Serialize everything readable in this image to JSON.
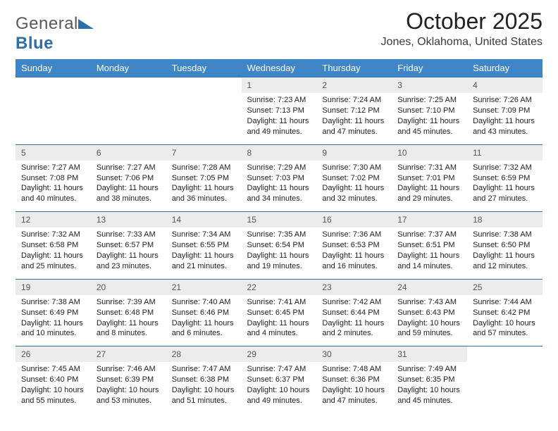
{
  "brand": {
    "part1": "General",
    "part2": "Blue"
  },
  "title": "October 2025",
  "subtitle": "Jones, Oklahoma, United States",
  "colors": {
    "header_bg": "#3f86c6",
    "header_text": "#ffffff",
    "daynum_bg": "#ececec",
    "rule": "#2f6fa8",
    "logo_gray": "#5a5a5a",
    "logo_blue": "#2f6fa8"
  },
  "fonts": {
    "title_pt": 32,
    "subtitle_pt": 16,
    "dayheader_pt": 13,
    "daynum_pt": 12,
    "body_pt": 11
  },
  "weekdays": [
    "Sunday",
    "Monday",
    "Tuesday",
    "Wednesday",
    "Thursday",
    "Friday",
    "Saturday"
  ],
  "weeks": [
    [
      null,
      null,
      null,
      {
        "n": "1",
        "sr": "Sunrise: 7:23 AM",
        "ss": "Sunset: 7:13 PM",
        "dl": "Daylight: 11 hours and 49 minutes."
      },
      {
        "n": "2",
        "sr": "Sunrise: 7:24 AM",
        "ss": "Sunset: 7:12 PM",
        "dl": "Daylight: 11 hours and 47 minutes."
      },
      {
        "n": "3",
        "sr": "Sunrise: 7:25 AM",
        "ss": "Sunset: 7:10 PM",
        "dl": "Daylight: 11 hours and 45 minutes."
      },
      {
        "n": "4",
        "sr": "Sunrise: 7:26 AM",
        "ss": "Sunset: 7:09 PM",
        "dl": "Daylight: 11 hours and 43 minutes."
      }
    ],
    [
      {
        "n": "5",
        "sr": "Sunrise: 7:27 AM",
        "ss": "Sunset: 7:08 PM",
        "dl": "Daylight: 11 hours and 40 minutes."
      },
      {
        "n": "6",
        "sr": "Sunrise: 7:27 AM",
        "ss": "Sunset: 7:06 PM",
        "dl": "Daylight: 11 hours and 38 minutes."
      },
      {
        "n": "7",
        "sr": "Sunrise: 7:28 AM",
        "ss": "Sunset: 7:05 PM",
        "dl": "Daylight: 11 hours and 36 minutes."
      },
      {
        "n": "8",
        "sr": "Sunrise: 7:29 AM",
        "ss": "Sunset: 7:03 PM",
        "dl": "Daylight: 11 hours and 34 minutes."
      },
      {
        "n": "9",
        "sr": "Sunrise: 7:30 AM",
        "ss": "Sunset: 7:02 PM",
        "dl": "Daylight: 11 hours and 32 minutes."
      },
      {
        "n": "10",
        "sr": "Sunrise: 7:31 AM",
        "ss": "Sunset: 7:01 PM",
        "dl": "Daylight: 11 hours and 29 minutes."
      },
      {
        "n": "11",
        "sr": "Sunrise: 7:32 AM",
        "ss": "Sunset: 6:59 PM",
        "dl": "Daylight: 11 hours and 27 minutes."
      }
    ],
    [
      {
        "n": "12",
        "sr": "Sunrise: 7:32 AM",
        "ss": "Sunset: 6:58 PM",
        "dl": "Daylight: 11 hours and 25 minutes."
      },
      {
        "n": "13",
        "sr": "Sunrise: 7:33 AM",
        "ss": "Sunset: 6:57 PM",
        "dl": "Daylight: 11 hours and 23 minutes."
      },
      {
        "n": "14",
        "sr": "Sunrise: 7:34 AM",
        "ss": "Sunset: 6:55 PM",
        "dl": "Daylight: 11 hours and 21 minutes."
      },
      {
        "n": "15",
        "sr": "Sunrise: 7:35 AM",
        "ss": "Sunset: 6:54 PM",
        "dl": "Daylight: 11 hours and 19 minutes."
      },
      {
        "n": "16",
        "sr": "Sunrise: 7:36 AM",
        "ss": "Sunset: 6:53 PM",
        "dl": "Daylight: 11 hours and 16 minutes."
      },
      {
        "n": "17",
        "sr": "Sunrise: 7:37 AM",
        "ss": "Sunset: 6:51 PM",
        "dl": "Daylight: 11 hours and 14 minutes."
      },
      {
        "n": "18",
        "sr": "Sunrise: 7:38 AM",
        "ss": "Sunset: 6:50 PM",
        "dl": "Daylight: 11 hours and 12 minutes."
      }
    ],
    [
      {
        "n": "19",
        "sr": "Sunrise: 7:38 AM",
        "ss": "Sunset: 6:49 PM",
        "dl": "Daylight: 11 hours and 10 minutes."
      },
      {
        "n": "20",
        "sr": "Sunrise: 7:39 AM",
        "ss": "Sunset: 6:48 PM",
        "dl": "Daylight: 11 hours and 8 minutes."
      },
      {
        "n": "21",
        "sr": "Sunrise: 7:40 AM",
        "ss": "Sunset: 6:46 PM",
        "dl": "Daylight: 11 hours and 6 minutes."
      },
      {
        "n": "22",
        "sr": "Sunrise: 7:41 AM",
        "ss": "Sunset: 6:45 PM",
        "dl": "Daylight: 11 hours and 4 minutes."
      },
      {
        "n": "23",
        "sr": "Sunrise: 7:42 AM",
        "ss": "Sunset: 6:44 PM",
        "dl": "Daylight: 11 hours and 2 minutes."
      },
      {
        "n": "24",
        "sr": "Sunrise: 7:43 AM",
        "ss": "Sunset: 6:43 PM",
        "dl": "Daylight: 10 hours and 59 minutes."
      },
      {
        "n": "25",
        "sr": "Sunrise: 7:44 AM",
        "ss": "Sunset: 6:42 PM",
        "dl": "Daylight: 10 hours and 57 minutes."
      }
    ],
    [
      {
        "n": "26",
        "sr": "Sunrise: 7:45 AM",
        "ss": "Sunset: 6:40 PM",
        "dl": "Daylight: 10 hours and 55 minutes."
      },
      {
        "n": "27",
        "sr": "Sunrise: 7:46 AM",
        "ss": "Sunset: 6:39 PM",
        "dl": "Daylight: 10 hours and 53 minutes."
      },
      {
        "n": "28",
        "sr": "Sunrise: 7:47 AM",
        "ss": "Sunset: 6:38 PM",
        "dl": "Daylight: 10 hours and 51 minutes."
      },
      {
        "n": "29",
        "sr": "Sunrise: 7:47 AM",
        "ss": "Sunset: 6:37 PM",
        "dl": "Daylight: 10 hours and 49 minutes."
      },
      {
        "n": "30",
        "sr": "Sunrise: 7:48 AM",
        "ss": "Sunset: 6:36 PM",
        "dl": "Daylight: 10 hours and 47 minutes."
      },
      {
        "n": "31",
        "sr": "Sunrise: 7:49 AM",
        "ss": "Sunset: 6:35 PM",
        "dl": "Daylight: 10 hours and 45 minutes."
      },
      null
    ]
  ]
}
